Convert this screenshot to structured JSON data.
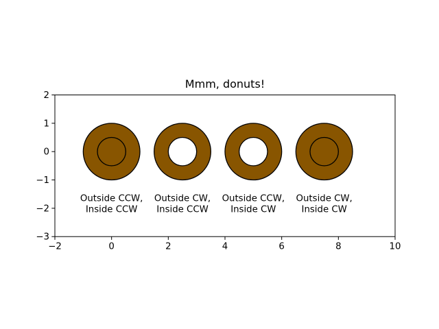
{
  "figure": {
    "background": "#ffffff"
  },
  "chart_data": {
    "type": "shapes",
    "title": "Mmm, donuts!",
    "xlabel": "",
    "ylabel": "",
    "xlim": [
      -2,
      10
    ],
    "ylim": [
      -3,
      2
    ],
    "aspect": "equal",
    "grid": false,
    "legend": false,
    "xticks": [
      -2,
      0,
      2,
      4,
      6,
      8,
      10
    ],
    "xtick_labels": [
      "−2",
      "0",
      "2",
      "4",
      "6",
      "8",
      "10"
    ],
    "yticks": [
      2,
      1,
      0,
      -1,
      -2,
      -3
    ],
    "ytick_labels": [
      "2",
      "1",
      "0",
      "−1",
      "−2",
      "−3"
    ],
    "colors": {
      "donut_fill": "#885500",
      "donut_edge": "#000000",
      "hole_fill": "#ffffff",
      "axes": "#000000",
      "text": "#000000"
    },
    "label_anchor_y": -1.5,
    "donuts": [
      {
        "center_x": 0,
        "center_y": 0,
        "outer_radius": 1.0,
        "inner_radius": 0.5,
        "outside_winding": "CCW",
        "inside_winding": "CCW",
        "hole_visible": false,
        "label_line1": "Outside CCW,",
        "label_line2": "Inside CCW"
      },
      {
        "center_x": 2.5,
        "center_y": 0,
        "outer_radius": 1.0,
        "inner_radius": 0.5,
        "outside_winding": "CW",
        "inside_winding": "CCW",
        "hole_visible": true,
        "label_line1": "Outside CW,",
        "label_line2": "Inside CCW"
      },
      {
        "center_x": 5,
        "center_y": 0,
        "outer_radius": 1.0,
        "inner_radius": 0.5,
        "outside_winding": "CCW",
        "inside_winding": "CW",
        "hole_visible": true,
        "label_line1": "Outside CCW,",
        "label_line2": "Inside CW"
      },
      {
        "center_x": 7.5,
        "center_y": 0,
        "outer_radius": 1.0,
        "inner_radius": 0.5,
        "outside_winding": "CW",
        "inside_winding": "CW",
        "hole_visible": false,
        "label_line1": "Outside CW,",
        "label_line2": "Inside CW"
      }
    ]
  }
}
